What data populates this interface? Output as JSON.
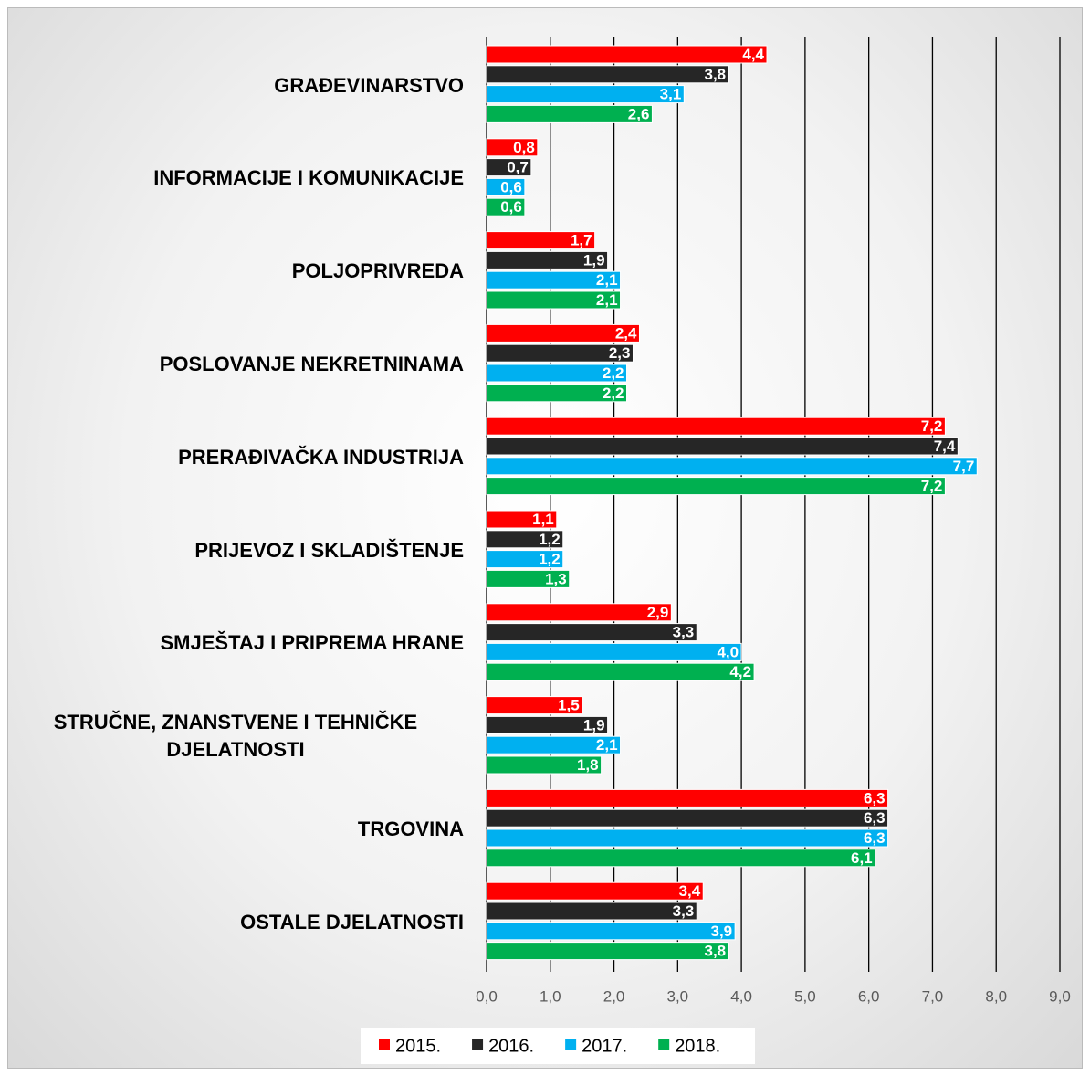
{
  "chart_data": {
    "type": "bar",
    "orientation": "horizontal",
    "categories": [
      "GRAĐEVINARSTVO",
      "INFORMACIJE I KOMUNIKACIJE",
      "POLJOPRIVREDA",
      "POSLOVANJE NEKRETNINAMA",
      "PRERAĐIVAČKA INDUSTRIJA",
      "PRIJEVOZ I SKLADIŠTENJE",
      "SMJEŠTAJ I PRIPREMA HRANE",
      "STRUČNE, ZNANSTVENE I TEHNIČKE DJELATNOSTI",
      "TRGOVINA",
      "OSTALE DJELATNOSTI"
    ],
    "series": [
      {
        "name": "2015.",
        "color": "#ff0000",
        "values": [
          4.4,
          0.8,
          1.7,
          2.4,
          7.2,
          1.1,
          2.9,
          1.5,
          6.3,
          3.4
        ],
        "value_labels": [
          "4,4",
          "0,8",
          "1,7",
          "2,4",
          "7,2",
          "1,1",
          "2,9",
          "1,5",
          "6,3",
          "3,4"
        ]
      },
      {
        "name": "2016.",
        "color": "#262626",
        "values": [
          3.8,
          0.7,
          1.9,
          2.3,
          7.4,
          1.2,
          3.3,
          1.9,
          6.3,
          3.3
        ],
        "value_labels": [
          "3,8",
          "0,7",
          "1,9",
          "2,3",
          "7,4",
          "1,2",
          "3,3",
          "1,9",
          "6,3",
          "3,3"
        ]
      },
      {
        "name": "2017.",
        "color": "#00b0f0",
        "values": [
          3.1,
          0.6,
          2.1,
          2.2,
          7.7,
          1.2,
          4.0,
          2.1,
          6.3,
          3.9
        ],
        "value_labels": [
          "3,1",
          "0,6",
          "2,1",
          "2,2",
          "7,7",
          "1,2",
          "4,0",
          "2,1",
          "6,3",
          "3,9"
        ]
      },
      {
        "name": "2018.",
        "color": "#00b050",
        "values": [
          2.6,
          0.6,
          2.1,
          2.2,
          7.2,
          1.3,
          4.2,
          1.8,
          6.1,
          3.8
        ],
        "value_labels": [
          "2,6",
          "0,6",
          "2,1",
          "2,2",
          "7,2",
          "1,3",
          "4,2",
          "1,8",
          "6,1",
          "3,8"
        ]
      }
    ],
    "xlim": [
      0,
      9
    ],
    "xticks": [
      {
        "value": 0,
        "label": "0,0"
      },
      {
        "value": 1,
        "label": "1,0"
      },
      {
        "value": 2,
        "label": "2,0"
      },
      {
        "value": 3,
        "label": "3,0"
      },
      {
        "value": 4,
        "label": "4,0"
      },
      {
        "value": 5,
        "label": "5,0"
      },
      {
        "value": 6,
        "label": "6,0"
      },
      {
        "value": 7,
        "label": "7,0"
      },
      {
        "value": 8,
        "label": "8,0"
      },
      {
        "value": 9,
        "label": "9,0"
      }
    ],
    "grid": true,
    "legend": "bottom"
  }
}
